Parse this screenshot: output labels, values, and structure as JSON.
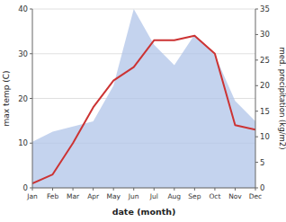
{
  "chart_data": {
    "type": "line",
    "xlabel": "date (month)",
    "ylabel": "max temp (C)",
    "y2label": "med. precipitation (kg/m2)",
    "categories": [
      "Jan",
      "Feb",
      "Mar",
      "Apr",
      "May",
      "Jun",
      "Jul",
      "Aug",
      "Sep",
      "Oct",
      "Nov",
      "Dec"
    ],
    "series": [
      {
        "type": "area",
        "axis": "y2",
        "color": "#b0c4e8",
        "values": [
          9,
          11,
          12,
          13,
          20,
          35,
          28,
          24,
          30,
          26,
          17,
          13
        ]
      },
      {
        "type": "line",
        "color": "#cc3333",
        "values": [
          1,
          3,
          10,
          18,
          24,
          27,
          33,
          33,
          34,
          30,
          14,
          13
        ]
      }
    ],
    "ylim": [
      0,
      40
    ],
    "yticks": [
      0,
      10,
      20,
      30,
      40
    ],
    "y2lim": [
      0,
      35
    ],
    "y2ticks": [
      0,
      5,
      10,
      15,
      20,
      25,
      30,
      35
    ],
    "grid": true
  }
}
